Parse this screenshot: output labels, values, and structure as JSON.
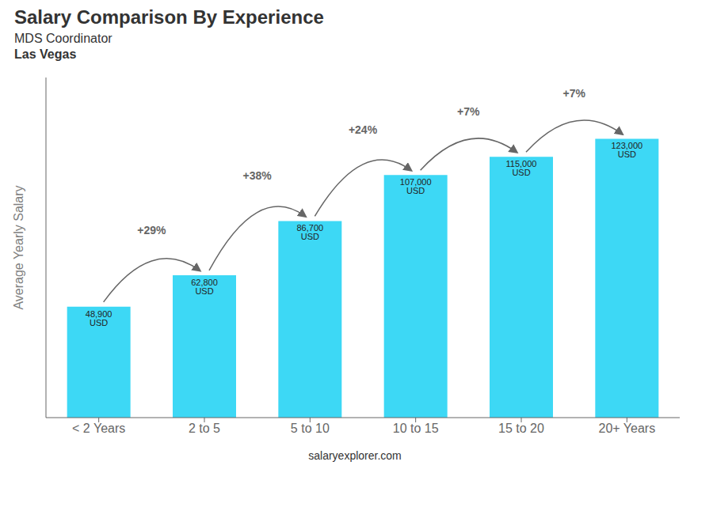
{
  "chart_data": {
    "type": "bar",
    "title": "Salary Comparison By Experience",
    "subtitle": "MDS Coordinator",
    "y_label": "Average Yearly Salary",
    "categories": [
      "< 2 Years",
      "2 to 5",
      "5 to 10",
      "10 to 15",
      "15 to 20",
      "20+ Years"
    ],
    "values": [
      48900,
      62800,
      86700,
      107000,
      115000,
      123000
    ],
    "value_labels": [
      "48,900 USD",
      "62,800 USD",
      "86,700 USD",
      "107,000 USD",
      "115,000 USD",
      "123,000 USD"
    ],
    "data_labels": true,
    "color": "#3dd8f5",
    "ylim": [
      0,
      150000
    ],
    "tick_labels": "x",
    "grid": false,
    "annotations": [
      {
        "text": "Las Vegas"
      },
      {
        "text": "+29%",
        "from": "< 2 Years",
        "to": "2 to 5"
      },
      {
        "text": "+38%",
        "from": "2 to 5",
        "to": "5 to 10"
      },
      {
        "text": "+24%",
        "from": "5 to 10",
        "to": "10 to 15"
      },
      {
        "text": "+7%",
        "from": "10 to 15",
        "to": "15 to 20"
      },
      {
        "text": "+7%",
        "from": "15 to 20",
        "to": "20+ Years"
      },
      {
        "text": "salaryexplorer.com"
      }
    ]
  }
}
